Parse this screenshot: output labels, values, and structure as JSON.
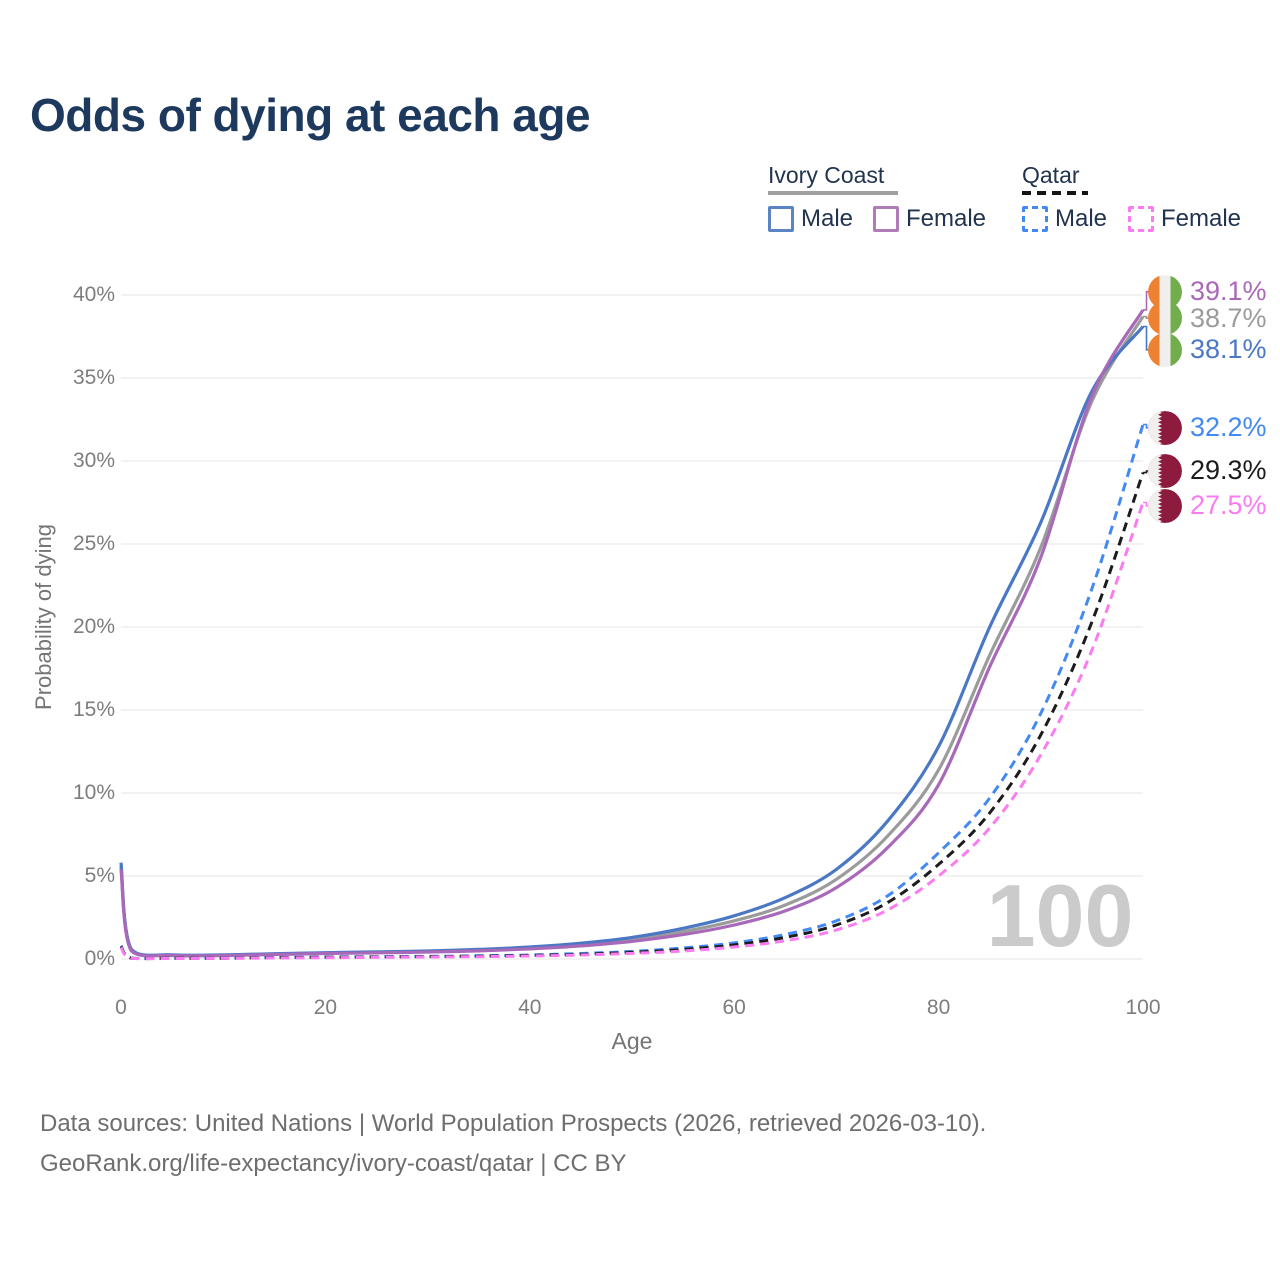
{
  "title": "Odds of dying at each age",
  "colors": {
    "background": "#ffffff",
    "title": "#1d3a5e",
    "legend_text": "#22334e",
    "axis_text": "#757575",
    "tick_text": "#7d7d7d",
    "footer_text": "#6e6e6e",
    "watermark": "#cbcbcb",
    "gridline": "#eaeaea"
  },
  "legend": {
    "groups": [
      {
        "name": "Ivory Coast",
        "line_style": "solid",
        "underline_color": "#a0a0a0",
        "items": [
          {
            "label": "Male",
            "color": "#5b84c4",
            "dashed": false
          },
          {
            "label": "Female",
            "color": "#b07cb8",
            "dashed": false
          }
        ]
      },
      {
        "name": "Qatar",
        "line_style": "dashed",
        "underline_color": "#141414",
        "items": [
          {
            "label": "Male",
            "color": "#4389f4",
            "dashed": true
          },
          {
            "label": "Female",
            "color": "#fa7cf0",
            "dashed": true
          }
        ]
      }
    ]
  },
  "axes": {
    "x_label": "Age",
    "y_label": "Probability of dying"
  },
  "watermark": "100",
  "flag_colors": {
    "ivory_coast": {
      "orange": "#ee8233",
      "white": "#f0efed",
      "green": "#71ad4b"
    },
    "qatar": {
      "maroon": "#8d1b3d",
      "white": "#f0efed"
    }
  },
  "end_labels": [
    {
      "text": "39.1%",
      "series": "Ivory Coast Female",
      "color": "#ab68b8",
      "flag": "ivory-coast",
      "value_pct": 39.1,
      "label_pct": 40.2
    },
    {
      "text": "38.7%",
      "series": "Ivory Coast Both sexes",
      "color": "#9b9b9b",
      "flag": "ivory-coast",
      "value_pct": 38.7,
      "label_pct": 38.6
    },
    {
      "text": "38.1%",
      "series": "Ivory Coast Male",
      "color": "#4b78c4",
      "flag": "ivory-coast",
      "value_pct": 38.1,
      "label_pct": 36.7
    },
    {
      "text": "32.2%",
      "series": "Qatar Male",
      "color": "#4389f4",
      "flag": "qatar",
      "value_pct": 32.2,
      "label_pct": 32.0
    },
    {
      "text": "29.3%",
      "series": "Qatar Both sexes",
      "color": "#1c1c1c",
      "flag": "qatar",
      "value_pct": 29.3,
      "label_pct": 29.4
    },
    {
      "text": "27.5%",
      "series": "Qatar Female",
      "color": "#fa7cf0",
      "flag": "qatar",
      "value_pct": 27.5,
      "label_pct": 27.3
    }
  ],
  "footer": {
    "line1": "Data sources: United Nations | World Population Prospects (2026, retrieved 2026-03-10).",
    "line2": "GeoRank.org/life-expectancy/ivory-coast/qatar | CC BY"
  },
  "chart_data": {
    "type": "line",
    "title": "Odds of dying at each age",
    "xlabel": "Age",
    "ylabel": "Probability of dying",
    "x_range": [
      0,
      100
    ],
    "y_range_pct": [
      0,
      40
    ],
    "x_ticks": [
      0,
      20,
      40,
      60,
      80,
      100
    ],
    "y_ticks_pct": [
      0,
      5,
      10,
      15,
      20,
      25,
      30,
      35,
      40
    ],
    "grid": "horizontal",
    "legend_position": "top-right",
    "ages": [
      0,
      1,
      5,
      10,
      15,
      20,
      25,
      30,
      35,
      40,
      45,
      50,
      55,
      60,
      65,
      70,
      75,
      80,
      85,
      90,
      95,
      100
    ],
    "series": [
      {
        "id": "ivory-coast-both",
        "name": "Ivory Coast Both sexes",
        "style": "solid",
        "color": "#9b9b9b",
        "values_pct": [
          5.6,
          0.55,
          0.23,
          0.23,
          0.3,
          0.36,
          0.4,
          0.45,
          0.53,
          0.66,
          0.87,
          1.18,
          1.65,
          2.3,
          3.25,
          4.8,
          7.4,
          11.4,
          18.3,
          24.8,
          33.6,
          38.7
        ]
      },
      {
        "id": "ivory-coast-male",
        "name": "Ivory Coast Male",
        "style": "solid",
        "color": "#4b78c4",
        "values_pct": [
          5.8,
          0.6,
          0.25,
          0.25,
          0.32,
          0.38,
          0.43,
          0.48,
          0.58,
          0.72,
          0.95,
          1.3,
          1.85,
          2.6,
          3.7,
          5.4,
          8.3,
          12.8,
          20.0,
          26.3,
          34.2,
          38.1
        ]
      },
      {
        "id": "ivory-coast-female",
        "name": "Ivory Coast Female",
        "style": "solid",
        "color": "#a869b9",
        "values_pct": [
          5.4,
          0.5,
          0.21,
          0.21,
          0.27,
          0.33,
          0.37,
          0.42,
          0.49,
          0.61,
          0.79,
          1.06,
          1.47,
          2.05,
          2.9,
          4.3,
          6.7,
          10.5,
          17.6,
          24.2,
          33.9,
          39.1
        ]
      },
      {
        "id": "qatar-male",
        "name": "Qatar Male",
        "style": "dashed",
        "color": "#4389f4",
        "values_pct": [
          0.8,
          0.06,
          0.04,
          0.05,
          0.09,
          0.12,
          0.14,
          0.16,
          0.19,
          0.24,
          0.33,
          0.46,
          0.66,
          0.97,
          1.48,
          2.3,
          3.8,
          6.4,
          9.7,
          14.8,
          22.3,
          32.2
        ]
      },
      {
        "id": "qatar-both",
        "name": "Qatar Both sexes",
        "style": "dashed",
        "color": "#1c1c1c",
        "values_pct": [
          0.75,
          0.05,
          0.04,
          0.05,
          0.08,
          0.1,
          0.12,
          0.14,
          0.17,
          0.21,
          0.28,
          0.4,
          0.57,
          0.85,
          1.3,
          2.05,
          3.4,
          5.7,
          8.8,
          13.5,
          20.3,
          29.3
        ]
      },
      {
        "id": "qatar-female",
        "name": "Qatar Female",
        "style": "dashed",
        "color": "#fa7cf0",
        "values_pct": [
          0.7,
          0.05,
          0.03,
          0.04,
          0.06,
          0.08,
          0.1,
          0.12,
          0.14,
          0.18,
          0.24,
          0.34,
          0.48,
          0.72,
          1.1,
          1.75,
          2.95,
          5.0,
          7.9,
          12.3,
          18.6,
          27.5
        ]
      }
    ]
  }
}
